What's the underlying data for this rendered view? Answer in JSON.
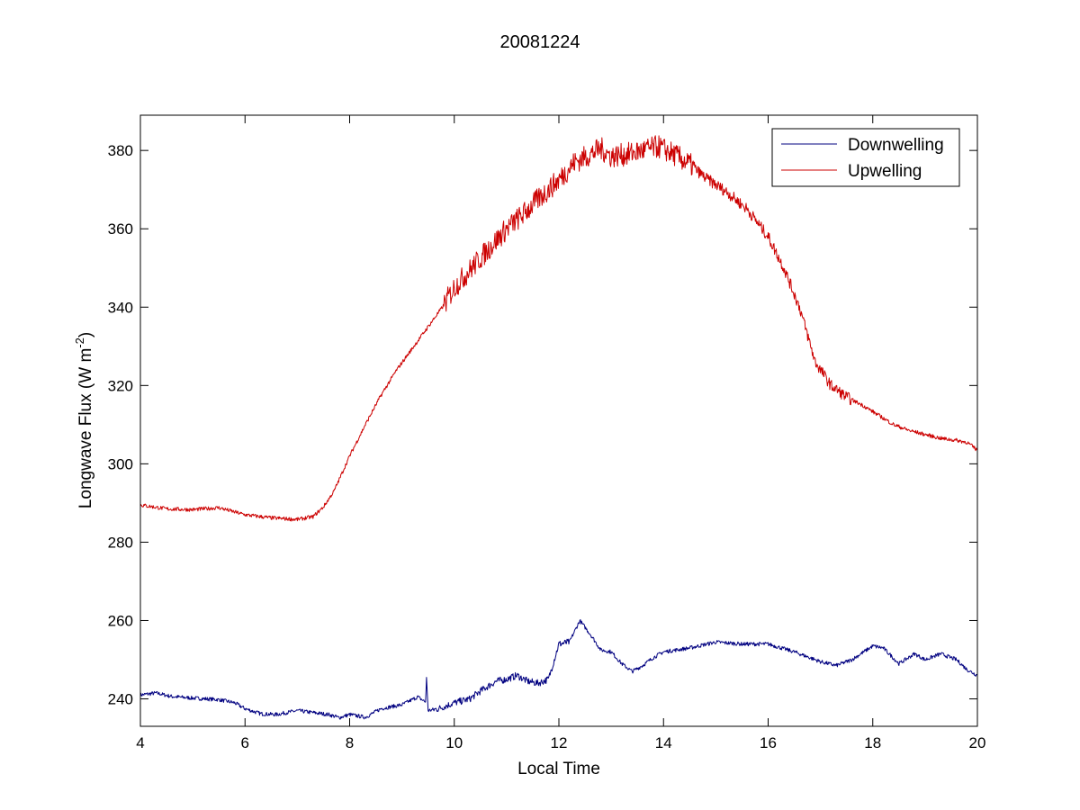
{
  "chart_data": {
    "type": "line",
    "title": "20081224",
    "xlabel": "Local Time",
    "ylabel_main": "Longwave Flux (W m",
    "ylabel_sup": "-2",
    "ylabel_close": ")",
    "xlim": [
      4,
      20
    ],
    "ylim": [
      233,
      389
    ],
    "xticks": [
      4,
      6,
      8,
      10,
      12,
      14,
      16,
      18,
      20
    ],
    "yticks": [
      240,
      260,
      280,
      300,
      320,
      340,
      360,
      380
    ],
    "grid": false,
    "legend_position": "top-right",
    "series": [
      {
        "name": "Downwelling",
        "color": "#000080",
        "points": [
          [
            4.0,
            241.0
          ],
          [
            4.3,
            241.5
          ],
          [
            4.6,
            240.6
          ],
          [
            5.0,
            240.2
          ],
          [
            5.5,
            239.8
          ],
          [
            5.8,
            239.0
          ],
          [
            6.0,
            237.5
          ],
          [
            6.3,
            236.2
          ],
          [
            6.6,
            236.0
          ],
          [
            7.0,
            237.0
          ],
          [
            7.3,
            236.5
          ],
          [
            7.6,
            236.0
          ],
          [
            7.8,
            235.2
          ],
          [
            8.0,
            236.0
          ],
          [
            8.3,
            235.3
          ],
          [
            8.6,
            237.5
          ],
          [
            9.0,
            238.5
          ],
          [
            9.3,
            240.5
          ],
          [
            9.45,
            239.2
          ],
          [
            9.47,
            245.5
          ],
          [
            9.5,
            237.0
          ],
          [
            9.7,
            237.5
          ],
          [
            10.0,
            239.0
          ],
          [
            10.3,
            240.0
          ],
          [
            10.5,
            242.0
          ],
          [
            10.8,
            244.5
          ],
          [
            11.0,
            245.0
          ],
          [
            11.2,
            246.0
          ],
          [
            11.4,
            244.5
          ],
          [
            11.6,
            244.0
          ],
          [
            11.8,
            245.0
          ],
          [
            12.0,
            254.0
          ],
          [
            12.2,
            254.5
          ],
          [
            12.4,
            260.0
          ],
          [
            12.6,
            256.5
          ],
          [
            12.8,
            252.5
          ],
          [
            13.0,
            252.0
          ],
          [
            13.2,
            249.0
          ],
          [
            13.4,
            247.0
          ],
          [
            13.6,
            248.5
          ],
          [
            13.8,
            250.5
          ],
          [
            14.0,
            252.0
          ],
          [
            14.5,
            253.0
          ],
          [
            15.0,
            254.5
          ],
          [
            15.5,
            254.0
          ],
          [
            16.0,
            254.0
          ],
          [
            16.5,
            252.0
          ],
          [
            17.0,
            249.5
          ],
          [
            17.3,
            248.5
          ],
          [
            17.6,
            250.0
          ],
          [
            18.0,
            253.5
          ],
          [
            18.2,
            253.0
          ],
          [
            18.5,
            249.0
          ],
          [
            18.8,
            251.5
          ],
          [
            19.0,
            250.0
          ],
          [
            19.3,
            251.5
          ],
          [
            19.6,
            250.0
          ],
          [
            19.8,
            247.5
          ],
          [
            20.0,
            246.0
          ]
        ]
      },
      {
        "name": "Upwelling",
        "color": "#cc0000",
        "points": [
          [
            4.0,
            289.5
          ],
          [
            4.5,
            288.5
          ],
          [
            5.0,
            288.3
          ],
          [
            5.5,
            288.8
          ],
          [
            6.0,
            287.0
          ],
          [
            6.5,
            286.2
          ],
          [
            7.0,
            285.8
          ],
          [
            7.3,
            286.5
          ],
          [
            7.5,
            289.0
          ],
          [
            7.7,
            293.0
          ],
          [
            8.0,
            302.0
          ],
          [
            8.3,
            310.0
          ],
          [
            8.6,
            317.5
          ],
          [
            8.9,
            324.0
          ],
          [
            9.2,
            329.5
          ],
          [
            9.5,
            335.0
          ],
          [
            9.8,
            340.5
          ],
          [
            10.0,
            345.0
          ],
          [
            10.3,
            349.5
          ],
          [
            10.6,
            354.0
          ],
          [
            11.0,
            360.0
          ],
          [
            11.3,
            363.5
          ],
          [
            11.6,
            367.5
          ],
          [
            12.0,
            372.5
          ],
          [
            12.3,
            377.0
          ],
          [
            12.6,
            379.0
          ],
          [
            12.8,
            380.5
          ],
          [
            13.0,
            378.5
          ],
          [
            13.3,
            379.0
          ],
          [
            13.6,
            380.0
          ],
          [
            13.9,
            381.0
          ],
          [
            14.2,
            379.0
          ],
          [
            14.5,
            376.5
          ],
          [
            14.8,
            373.0
          ],
          [
            15.2,
            369.5
          ],
          [
            15.6,
            365.0
          ],
          [
            16.0,
            358.0
          ],
          [
            16.3,
            350.0
          ],
          [
            16.6,
            340.0
          ],
          [
            16.9,
            326.0
          ],
          [
            17.2,
            320.0
          ],
          [
            17.5,
            317.0
          ],
          [
            17.8,
            315.0
          ],
          [
            18.1,
            312.5
          ],
          [
            18.4,
            310.0
          ],
          [
            18.7,
            308.5
          ],
          [
            19.0,
            307.5
          ],
          [
            19.3,
            306.5
          ],
          [
            19.6,
            306.0
          ],
          [
            19.8,
            305.5
          ],
          [
            20.0,
            303.5
          ]
        ]
      }
    ]
  }
}
